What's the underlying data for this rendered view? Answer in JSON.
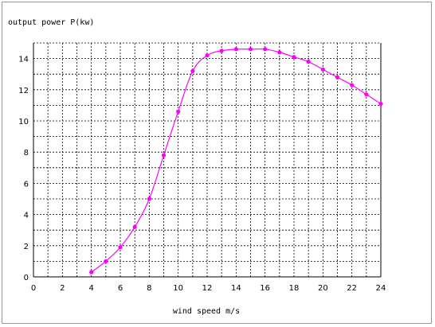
{
  "chart_data": {
    "type": "line",
    "ylabel": "output power P(kw)",
    "xlabel": "wind speed m/s",
    "xlim": [
      0,
      24
    ],
    "ylim": [
      0,
      15
    ],
    "x_ticks": [
      0,
      2,
      4,
      6,
      8,
      10,
      12,
      14,
      16,
      18,
      20,
      22,
      24
    ],
    "y_ticks": [
      0,
      2,
      4,
      6,
      8,
      10,
      12,
      14
    ],
    "grid": true,
    "series": [
      {
        "color": "#ff00ff",
        "points": [
          {
            "x": 4,
            "y": 0.3
          },
          {
            "x": 5,
            "y": 1.0
          },
          {
            "x": 6,
            "y": 1.9
          },
          {
            "x": 7,
            "y": 3.2
          },
          {
            "x": 8,
            "y": 5.0
          },
          {
            "x": 9,
            "y": 7.8
          },
          {
            "x": 10,
            "y": 10.6
          },
          {
            "x": 11,
            "y": 13.2
          },
          {
            "x": 12,
            "y": 14.2
          },
          {
            "x": 13,
            "y": 14.5
          },
          {
            "x": 14,
            "y": 14.6
          },
          {
            "x": 15,
            "y": 14.6
          },
          {
            "x": 16,
            "y": 14.6
          },
          {
            "x": 17,
            "y": 14.4
          },
          {
            "x": 18,
            "y": 14.1
          },
          {
            "x": 19,
            "y": 13.8
          },
          {
            "x": 20,
            "y": 13.3
          },
          {
            "x": 21,
            "y": 12.8
          },
          {
            "x": 22,
            "y": 12.3
          },
          {
            "x": 23,
            "y": 11.7
          },
          {
            "x": 24,
            "y": 11.1
          }
        ]
      }
    ]
  }
}
